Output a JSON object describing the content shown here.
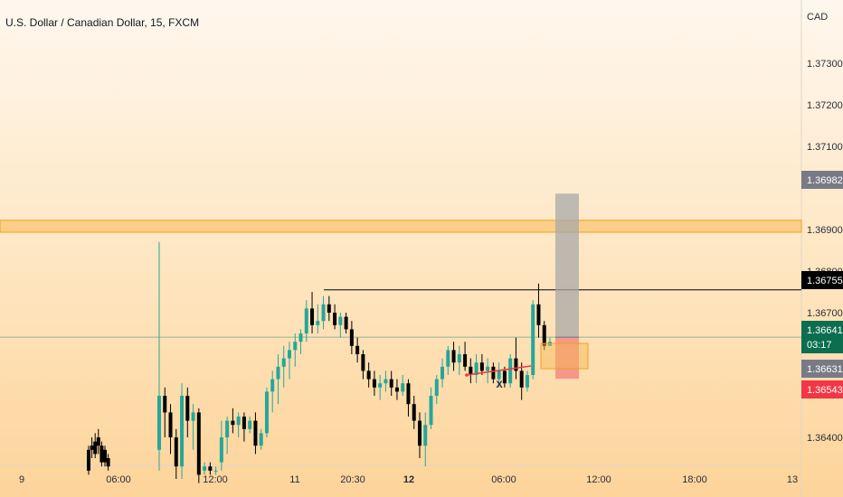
{
  "chart_data": {
    "type": "candlestick",
    "title": "U.S. Dollar / Canadian Dollar, 15, FXCM",
    "currency": "CAD",
    "y_ticks": [
      "1.37300",
      "1.37200",
      "1.37100",
      "1.36900",
      "1.36800",
      "1.36700",
      "1.36400"
    ],
    "ylim": [
      1.3634,
      1.3733
    ],
    "x_ticks": [
      {
        "label": "9",
        "bold": false
      },
      {
        "label": "06:00",
        "bold": false
      },
      {
        "label": "12:00",
        "bold": false
      },
      {
        "label": "11",
        "bold": false
      },
      {
        "label": "20:30",
        "bold": false
      },
      {
        "label": "12",
        "bold": true
      },
      {
        "label": "06:00",
        "bold": false
      },
      {
        "label": "12:00",
        "bold": false
      },
      {
        "label": "18:00",
        "bold": false
      },
      {
        "label": "13",
        "bold": false
      }
    ],
    "candles": [
      [
        1.3637,
        1.3638,
        1.3631,
        1.3632
      ],
      [
        1.3638,
        1.364,
        1.3635,
        1.3637
      ],
      [
        1.3639,
        1.3641,
        1.3635,
        1.3636
      ],
      [
        1.364,
        1.3642,
        1.3636,
        1.3638
      ],
      [
        1.3638,
        1.3639,
        1.3633,
        1.3634
      ],
      [
        1.3637,
        1.3638,
        1.3633,
        1.3634
      ],
      [
        1.3635,
        1.3636,
        1.3632,
        1.3633
      ],
      [
        1.3637,
        1.3687,
        1.3632,
        1.365
      ],
      [
        1.365,
        1.3652,
        1.364,
        1.3646
      ],
      [
        1.3646,
        1.3648,
        1.3636,
        1.364
      ],
      [
        1.364,
        1.3642,
        1.363,
        1.3633
      ],
      [
        1.3633,
        1.3653,
        1.363,
        1.365
      ],
      [
        1.365,
        1.3652,
        1.364,
        1.3644
      ],
      [
        1.3644,
        1.3648,
        1.3637,
        1.3646
      ],
      [
        1.3646,
        1.3647,
        1.3629,
        1.3631
      ],
      [
        1.3632,
        1.3634,
        1.3631,
        1.3633
      ],
      [
        1.3633,
        1.3634,
        1.3631,
        1.3632
      ],
      [
        1.3632,
        1.3633,
        1.3631,
        1.3632
      ],
      [
        1.3634,
        1.3644,
        1.3632,
        1.364
      ],
      [
        1.364,
        1.3645,
        1.3636,
        1.3644
      ],
      [
        1.3644,
        1.3647,
        1.3641,
        1.3643
      ],
      [
        1.3643,
        1.3646,
        1.364,
        1.3645
      ],
      [
        1.3645,
        1.3646,
        1.3639,
        1.3642
      ],
      [
        1.3642,
        1.3645,
        1.3641,
        1.3644
      ],
      [
        1.3644,
        1.3646,
        1.3636,
        1.3638
      ],
      [
        1.3638,
        1.3642,
        1.3637,
        1.3641
      ],
      [
        1.3641,
        1.3652,
        1.364,
        1.3651
      ],
      [
        1.3651,
        1.3656,
        1.3646,
        1.3654
      ],
      [
        1.3654,
        1.366,
        1.3648,
        1.3657
      ],
      [
        1.3657,
        1.3662,
        1.3652,
        1.3659
      ],
      [
        1.3659,
        1.3663,
        1.3654,
        1.3661
      ],
      [
        1.3661,
        1.3665,
        1.3657,
        1.3663
      ],
      [
        1.3663,
        1.3666,
        1.366,
        1.3665
      ],
      [
        1.3665,
        1.3673,
        1.3663,
        1.3671
      ],
      [
        1.3671,
        1.3675,
        1.3665,
        1.3667
      ],
      [
        1.3667,
        1.3672,
        1.3665,
        1.3668
      ],
      [
        1.3668,
        1.3674,
        1.3666,
        1.3672
      ],
      [
        1.3672,
        1.3674,
        1.3668,
        1.367
      ],
      [
        1.367,
        1.3672,
        1.3666,
        1.3667
      ],
      [
        1.3667,
        1.367,
        1.3664,
        1.3669
      ],
      [
        1.3669,
        1.367,
        1.3665,
        1.3666
      ],
      [
        1.3666,
        1.3668,
        1.366,
        1.3662
      ],
      [
        1.3662,
        1.3664,
        1.3658,
        1.366
      ],
      [
        1.366,
        1.3661,
        1.3654,
        1.3656
      ],
      [
        1.3656,
        1.3658,
        1.3652,
        1.3654
      ],
      [
        1.3654,
        1.3656,
        1.365,
        1.3652
      ],
      [
        1.3652,
        1.3655,
        1.3649,
        1.3653
      ],
      [
        1.3653,
        1.3656,
        1.3651,
        1.3654
      ],
      [
        1.3654,
        1.3656,
        1.365,
        1.3652
      ],
      [
        1.3652,
        1.3654,
        1.3649,
        1.3651
      ],
      [
        1.3651,
        1.3655,
        1.365,
        1.3653
      ],
      [
        1.3653,
        1.3654,
        1.3645,
        1.3648
      ],
      [
        1.3648,
        1.365,
        1.3642,
        1.3644
      ],
      [
        1.3644,
        1.3646,
        1.3635,
        1.3638
      ],
      [
        1.3638,
        1.3646,
        1.3633,
        1.3643
      ],
      [
        1.3643,
        1.3652,
        1.3642,
        1.365
      ],
      [
        1.365,
        1.3655,
        1.3648,
        1.3654
      ],
      [
        1.3654,
        1.3659,
        1.3652,
        1.3657
      ],
      [
        1.3657,
        1.3662,
        1.3655,
        1.3661
      ],
      [
        1.3661,
        1.3663,
        1.3656,
        1.3658
      ],
      [
        1.3658,
        1.3662,
        1.3655,
        1.366
      ],
      [
        1.366,
        1.3663,
        1.3656,
        1.3657
      ],
      [
        1.3657,
        1.3659,
        1.3653,
        1.3655
      ],
      [
        1.3655,
        1.366,
        1.3653,
        1.3658
      ],
      [
        1.3658,
        1.366,
        1.3655,
        1.3656
      ],
      [
        1.3656,
        1.3659,
        1.3653,
        1.3657
      ],
      [
        1.3657,
        1.3658,
        1.3653,
        1.3654
      ],
      [
        1.3654,
        1.3658,
        1.3652,
        1.3656
      ],
      [
        1.3656,
        1.3657,
        1.3652,
        1.3653
      ],
      [
        1.3653,
        1.366,
        1.3652,
        1.3659
      ],
      [
        1.3659,
        1.3664,
        1.3654,
        1.3656
      ],
      [
        1.3656,
        1.3658,
        1.3649,
        1.3652
      ],
      [
        1.3652,
        1.3656,
        1.3651,
        1.3655
      ],
      [
        1.3655,
        1.3673,
        1.3654,
        1.3672
      ],
      [
        1.3672,
        1.3677,
        1.3664,
        1.3667
      ],
      [
        1.3667,
        1.3668,
        1.3661,
        1.3662
      ],
      [
        1.3662,
        1.3664,
        1.3662,
        1.3663
      ]
    ],
    "resistance_zone": [
      1.369,
      1.3692
    ],
    "horizontal_line": {
      "price": 1.36755,
      "label": "1.36755"
    },
    "current_price_line": 1.36641,
    "trendline_label": "X",
    "position": {
      "target_price": 1.36982,
      "entry_price": 1.36641,
      "stop_price": 1.36631
    },
    "price_badges": [
      {
        "label": "1.36982",
        "color": "#787b86"
      },
      {
        "label": "1.36755",
        "color": "#000000"
      },
      {
        "label": "1.36641",
        "color": "#0b6e4f"
      },
      {
        "label": "03:17",
        "color": "#0b6e4f"
      },
      {
        "label": "1.36631",
        "color": "#787b86"
      },
      {
        "label": "1.36543",
        "color": "#f23645"
      }
    ],
    "colors": {
      "up": "#26a69a",
      "down": "#000000",
      "zone": "#f7b955",
      "target": "#a8a8a8",
      "stop": "#f28b82",
      "trend": "#f23645"
    }
  }
}
